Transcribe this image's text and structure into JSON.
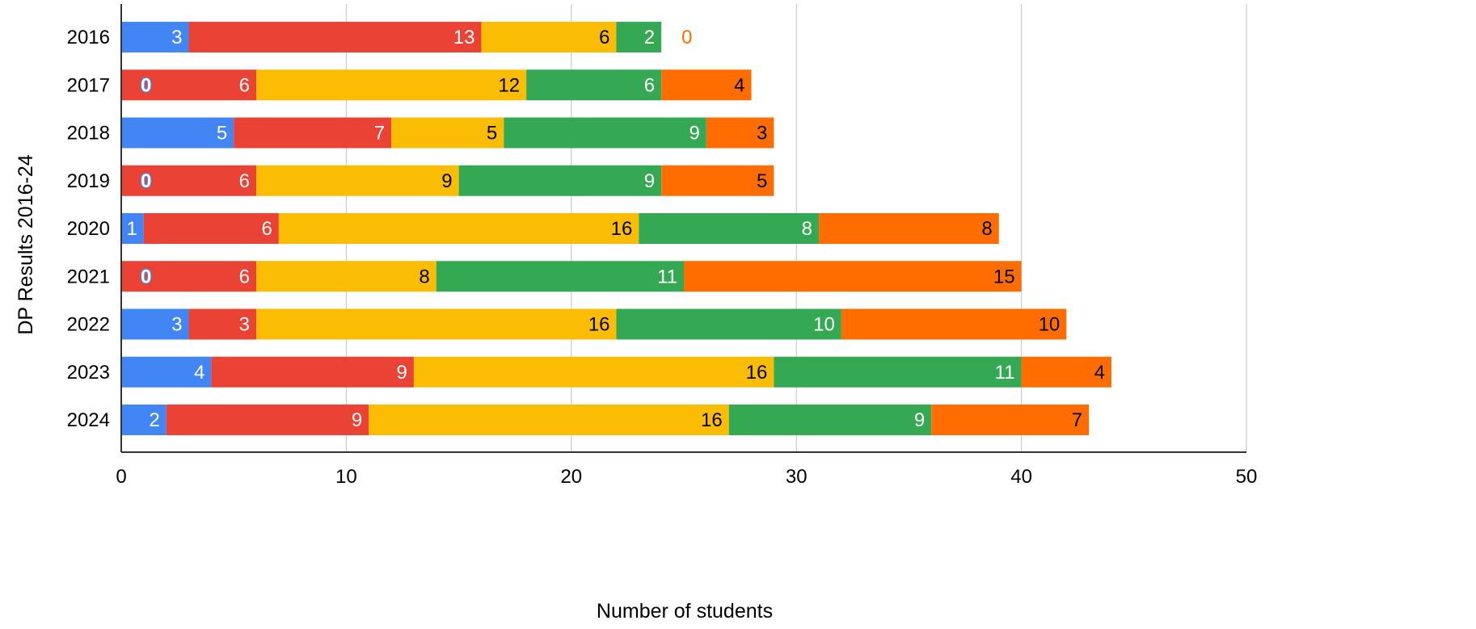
{
  "chart_data": {
    "type": "bar",
    "orientation": "horizontal",
    "stacked": true,
    "title": "",
    "xlabel": "Number of students",
    "ylabel": "DP Results 2016-24",
    "xlim": [
      0,
      50
    ],
    "xticks": [
      0,
      10,
      20,
      30,
      40,
      50
    ],
    "grid": true,
    "legend": "none",
    "categories": [
      "2016",
      "2017",
      "2018",
      "2019",
      "2020",
      "2021",
      "2022",
      "2023",
      "2024"
    ],
    "series": [
      {
        "color": "#4285F4",
        "label_color": "#ffffff",
        "values": [
          3,
          0,
          5,
          0,
          1,
          0,
          3,
          4,
          2
        ]
      },
      {
        "color": "#EA4335",
        "label_color": "#ffffff",
        "values": [
          13,
          6,
          7,
          6,
          6,
          6,
          3,
          9,
          9
        ]
      },
      {
        "color": "#FBBC04",
        "label_color": "#000000",
        "values": [
          6,
          12,
          5,
          9,
          16,
          8,
          16,
          16,
          16
        ]
      },
      {
        "color": "#34A853",
        "label_color": "#ffffff",
        "values": [
          2,
          6,
          9,
          9,
          8,
          11,
          10,
          11,
          9
        ]
      },
      {
        "color": "#FF6D01",
        "label_color": "#000000",
        "values": [
          0,
          4,
          3,
          5,
          8,
          15,
          10,
          4,
          7
        ]
      }
    ]
  }
}
